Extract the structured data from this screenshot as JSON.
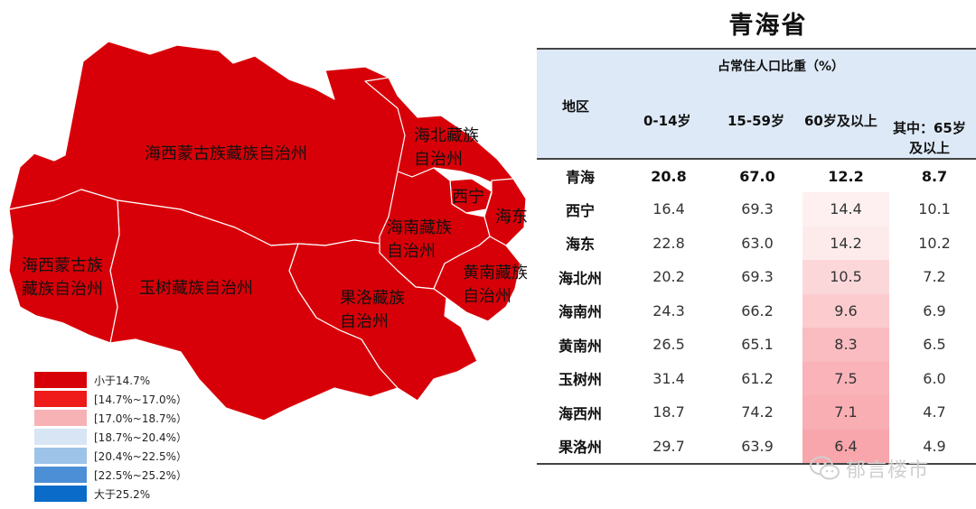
{
  "map": {
    "labels": {
      "haixi_main": "海西蒙古族藏族自治州",
      "haibei": "海北藏族\n自治州",
      "xining": "西宁",
      "haidong": "海东",
      "hainan": "海南藏族\n自治州",
      "huangnan": "黄南藏族\n自治州",
      "haixi_west": "海西蒙古族\n藏族自治州",
      "yushu": "玉树藏族自治州",
      "guoluo": "果洛藏族\n自治州"
    },
    "region_fill": "#d80008"
  },
  "legend": [
    {
      "label": "小于14.7%",
      "color": "#d80008"
    },
    {
      "label": "[14.7%~17.0%）",
      "color": "#ef1a1a"
    },
    {
      "label": "[17.0%~18.7%）",
      "color": "#f7b2b6"
    },
    {
      "label": "[18.7%~20.4%）",
      "color": "#d7e5f5"
    },
    {
      "label": "[20.4%~22.5%）",
      "color": "#9dc3e8"
    },
    {
      "label": "[22.5%~25.2%）",
      "color": "#4d8fd6"
    },
    {
      "label": "大于25.2%",
      "color": "#0a6bc8"
    }
  ],
  "title": "青海省",
  "table": {
    "header": {
      "region": "地区",
      "group": "占常住人口比重（%）",
      "col1": "0-14岁",
      "col2": "15-59岁",
      "col3": "60岁及以上",
      "col4_line1": "其中：65岁",
      "col4_line2": "及以上"
    },
    "rows": [
      {
        "region": "青海",
        "a": "20.8",
        "b": "67.0",
        "c": "12.2",
        "d": "8.7",
        "bold": true
      },
      {
        "region": "西宁",
        "a": "16.4",
        "b": "69.3",
        "c": "14.4",
        "d": "10.1",
        "heat": 0.1
      },
      {
        "region": "海东",
        "a": "22.8",
        "b": "63.0",
        "c": "14.2",
        "d": "10.2",
        "heat": 0.14
      },
      {
        "region": "海北州",
        "a": "20.2",
        "b": "69.3",
        "c": "10.5",
        "d": "7.2",
        "heat": 0.28
      },
      {
        "region": "海南州",
        "a": "24.3",
        "b": "66.2",
        "c": "9.6",
        "d": "6.9",
        "heat": 0.36
      },
      {
        "region": "黄南州",
        "a": "26.5",
        "b": "65.1",
        "c": "8.3",
        "d": "6.5",
        "heat": 0.46
      },
      {
        "region": "玉树州",
        "a": "31.4",
        "b": "61.2",
        "c": "7.5",
        "d": "6.0",
        "heat": 0.52
      },
      {
        "region": "海西州",
        "a": "18.7",
        "b": "74.2",
        "c": "7.1",
        "d": "4.7",
        "heat": 0.56
      },
      {
        "region": "果洛州",
        "a": "29.7",
        "b": "63.9",
        "c": "6.4",
        "d": "4.9",
        "heat": 0.62
      }
    ]
  },
  "watermark": "郁言楼市"
}
